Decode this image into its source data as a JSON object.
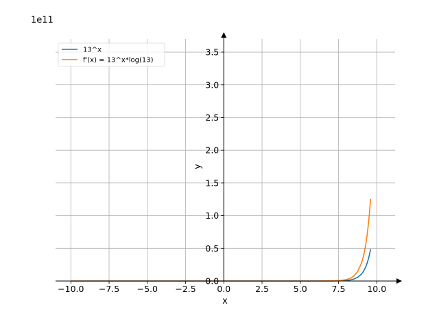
{
  "chart_data": {
    "type": "line",
    "xlabel": "x",
    "ylabel": "y",
    "y_offset_label": "1e11",
    "y_scale": 100000000000,
    "xlim": [
      -11.0,
      11.2
    ],
    "ylim": [
      0,
      3.7
    ],
    "x_ticks": [
      -10.0,
      -7.5,
      -5.0,
      -2.5,
      0.0,
      2.5,
      5.0,
      7.5,
      10.0
    ],
    "x_tick_labels": [
      "−10.0",
      "−7.5",
      "−5.0",
      "−2.5",
      "0.0",
      "2.5",
      "5.0",
      "7.5",
      "10.0"
    ],
    "y_ticks": [
      0.0,
      0.5,
      1.0,
      1.5,
      2.0,
      2.5,
      3.0,
      3.5
    ],
    "y_tick_labels": [
      "0.0",
      "0.5",
      "1.0",
      "1.5",
      "2.0",
      "2.5",
      "3.0",
      "3.5"
    ],
    "grid": true,
    "legend_position": "top-left",
    "series": [
      {
        "name": "13^x",
        "color": "#1f77b4",
        "x": [
          -10,
          -8,
          -6,
          -4,
          -2,
          0,
          2,
          4,
          6,
          7,
          7.5,
          8,
          8.25,
          8.5,
          8.75,
          9,
          9.1,
          9.2,
          9.3,
          9.4,
          9.5,
          9.6
        ],
        "y": [
          0,
          0,
          0,
          0,
          0,
          0,
          0,
          3e-07,
          4.8e-05,
          0.00063,
          0.0023,
          0.0082,
          0.0155,
          0.0295,
          0.056,
          0.106,
          0.137,
          0.177,
          0.228,
          0.294,
          0.379,
          0.49
        ]
      },
      {
        "name": "f'(x) = 13^x*log(13)",
        "color": "#ff7f0e",
        "x": [
          -10,
          -8,
          -6,
          -4,
          -2,
          0,
          2,
          4,
          6,
          7,
          7.5,
          8,
          8.25,
          8.5,
          8.75,
          9,
          9.1,
          9.2,
          9.3,
          9.4,
          9.5,
          9.6
        ],
        "y": [
          0,
          0,
          0,
          0,
          0,
          0,
          0,
          7e-07,
          0.000124,
          0.0016,
          0.0059,
          0.021,
          0.04,
          0.076,
          0.144,
          0.273,
          0.352,
          0.454,
          0.586,
          0.756,
          0.975,
          1.257
        ]
      }
    ]
  }
}
